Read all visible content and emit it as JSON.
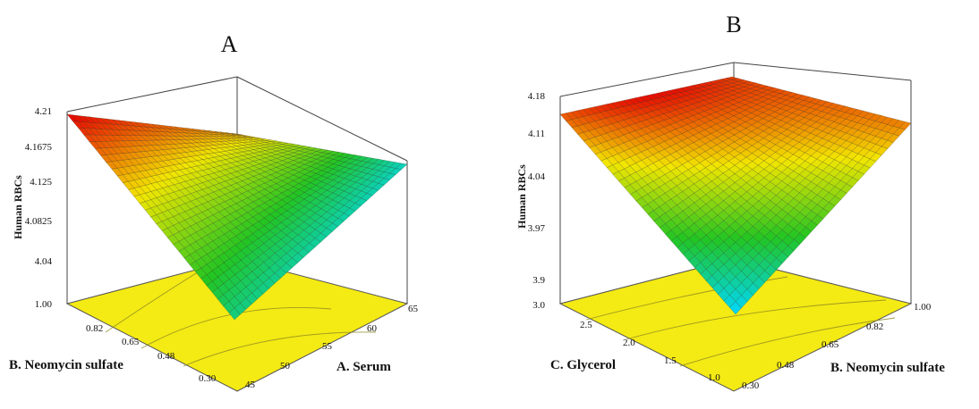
{
  "chart_data": [
    {
      "type": "surface3d",
      "panel": "A",
      "title": "",
      "zlabel": "Human RBCs",
      "xlabel": "A. Serum",
      "ylabel": "B. Neomycin sulfate",
      "x_ticks": [
        "45",
        "50",
        "55",
        "60",
        "65"
      ],
      "y_ticks": [
        "0.30",
        "0.48",
        "0.65",
        "0.82",
        "1.00"
      ],
      "z_ticks": [
        "4.04",
        "4.0825",
        "4.125",
        "4.1675",
        "4.21"
      ],
      "xlim": [
        45,
        65
      ],
      "ylim": [
        0.3,
        1.0
      ],
      "zlim": [
        4.0,
        4.21
      ],
      "surface_corners": {
        "serum45_neo030": 4.04,
        "serum45_neo100": 4.21,
        "serum65_neo030": 4.02,
        "serum65_neo100": 4.16
      },
      "colormap": [
        "#00d7ff",
        "#22c522",
        "#f2e600",
        "#e60000"
      ]
    },
    {
      "type": "surface3d",
      "panel": "B",
      "title": "",
      "zlabel": "Human RBCs",
      "xlabel": "B. Neomycin sulfate",
      "ylabel": "C. Glycerol",
      "x_ticks": [
        "0.30",
        "0.48",
        "0.65",
        "0.82",
        "1.00"
      ],
      "y_ticks": [
        "1.0",
        "1.5",
        "2.0",
        "2.5",
        "3.0"
      ],
      "z_ticks": [
        "3.9",
        "3.97",
        "4.04",
        "4.11",
        "4.18"
      ],
      "xlim": [
        0.3,
        1.0
      ],
      "ylim": [
        1.0,
        3.0
      ],
      "zlim": [
        3.85,
        4.18
      ],
      "surface_corners": {
        "neo030_gly10": 3.85,
        "neo030_gly30": 4.14,
        "neo100_gly10": 4.12,
        "neo100_gly30": 4.15
      },
      "colormap": [
        "#00d7ff",
        "#22c522",
        "#f2e600",
        "#e60000"
      ]
    }
  ]
}
